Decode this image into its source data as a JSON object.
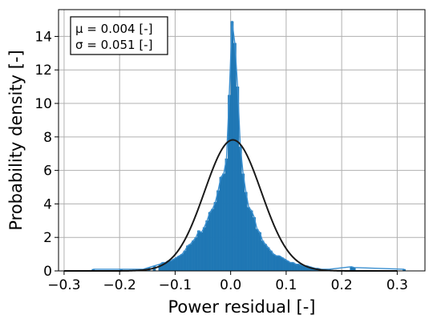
{
  "chart_data": {
    "type": "bar",
    "subtype": "histogram_with_normal_fit",
    "xlabel": "Power residual [-]",
    "ylabel": "Probability density [-]",
    "xlim": [
      -0.31,
      0.35
    ],
    "ylim": [
      0,
      15.6
    ],
    "xticks": [
      -0.3,
      -0.2,
      -0.1,
      0.0,
      0.1,
      0.2,
      0.3
    ],
    "xtick_labels": [
      "−0.3",
      "−0.2",
      "−0.1",
      "0.0",
      "0.1",
      "0.2",
      "0.3"
    ],
    "yticks": [
      0,
      2,
      4,
      6,
      8,
      10,
      12,
      14
    ],
    "ytick_labels": [
      "0",
      "2",
      "4",
      "6",
      "8",
      "10",
      "12",
      "14"
    ],
    "grid": true,
    "annotation": {
      "position": "top-left",
      "lines": [
        "μ = 0.004 [-]",
        "σ = 0.051 [-]"
      ]
    },
    "bin_width": 0.005,
    "bins_x": [
      -0.25,
      -0.2,
      -0.16,
      -0.15,
      -0.14,
      -0.13,
      -0.125,
      -0.12,
      -0.115,
      -0.11,
      -0.105,
      -0.1,
      -0.095,
      -0.09,
      -0.085,
      -0.08,
      -0.075,
      -0.07,
      -0.065,
      -0.06,
      -0.055,
      -0.05,
      -0.045,
      -0.04,
      -0.035,
      -0.03,
      -0.025,
      -0.02,
      -0.015,
      -0.01,
      -0.005,
      0.0,
      0.005,
      0.01,
      0.015,
      0.02,
      0.025,
      0.03,
      0.035,
      0.04,
      0.045,
      0.05,
      0.055,
      0.06,
      0.065,
      0.07,
      0.075,
      0.08,
      0.085,
      0.09,
      0.095,
      0.1,
      0.105,
      0.11,
      0.115,
      0.12,
      0.125,
      0.13,
      0.135,
      0.14,
      0.145,
      0.15,
      0.155,
      0.16,
      0.17,
      0.175,
      0.215,
      0.22,
      0.31
    ],
    "density": [
      0.1,
      0.1,
      0.1,
      0.2,
      0.3,
      0.4,
      0.5,
      0.5,
      0.6,
      0.6,
      0.7,
      0.8,
      0.9,
      1.0,
      1.2,
      1.5,
      1.6,
      1.8,
      2.0,
      2.4,
      2.3,
      2.6,
      3.0,
      3.5,
      3.7,
      4.1,
      4.8,
      5.6,
      5.8,
      6.7,
      10.5,
      14.9,
      13.6,
      11.0,
      7.4,
      5.8,
      4.7,
      3.8,
      3.6,
      3.2,
      2.5,
      2.3,
      1.8,
      1.6,
      1.4,
      1.2,
      1.0,
      0.9,
      0.9,
      0.8,
      0.7,
      0.6,
      0.5,
      0.5,
      0.4,
      0.4,
      0.35,
      0.3,
      0.3,
      0.25,
      0.2,
      0.15,
      0.15,
      0.1,
      0.1,
      0.1,
      0.25,
      0.2,
      0.1
    ],
    "fit": {
      "name": "normal",
      "mu": 0.004,
      "sigma": 0.051
    },
    "colors": {
      "bars": "#1f77b4",
      "fit_line": "#1a1a1a",
      "grid": "#b0b0b0",
      "axes": "#000000"
    }
  }
}
